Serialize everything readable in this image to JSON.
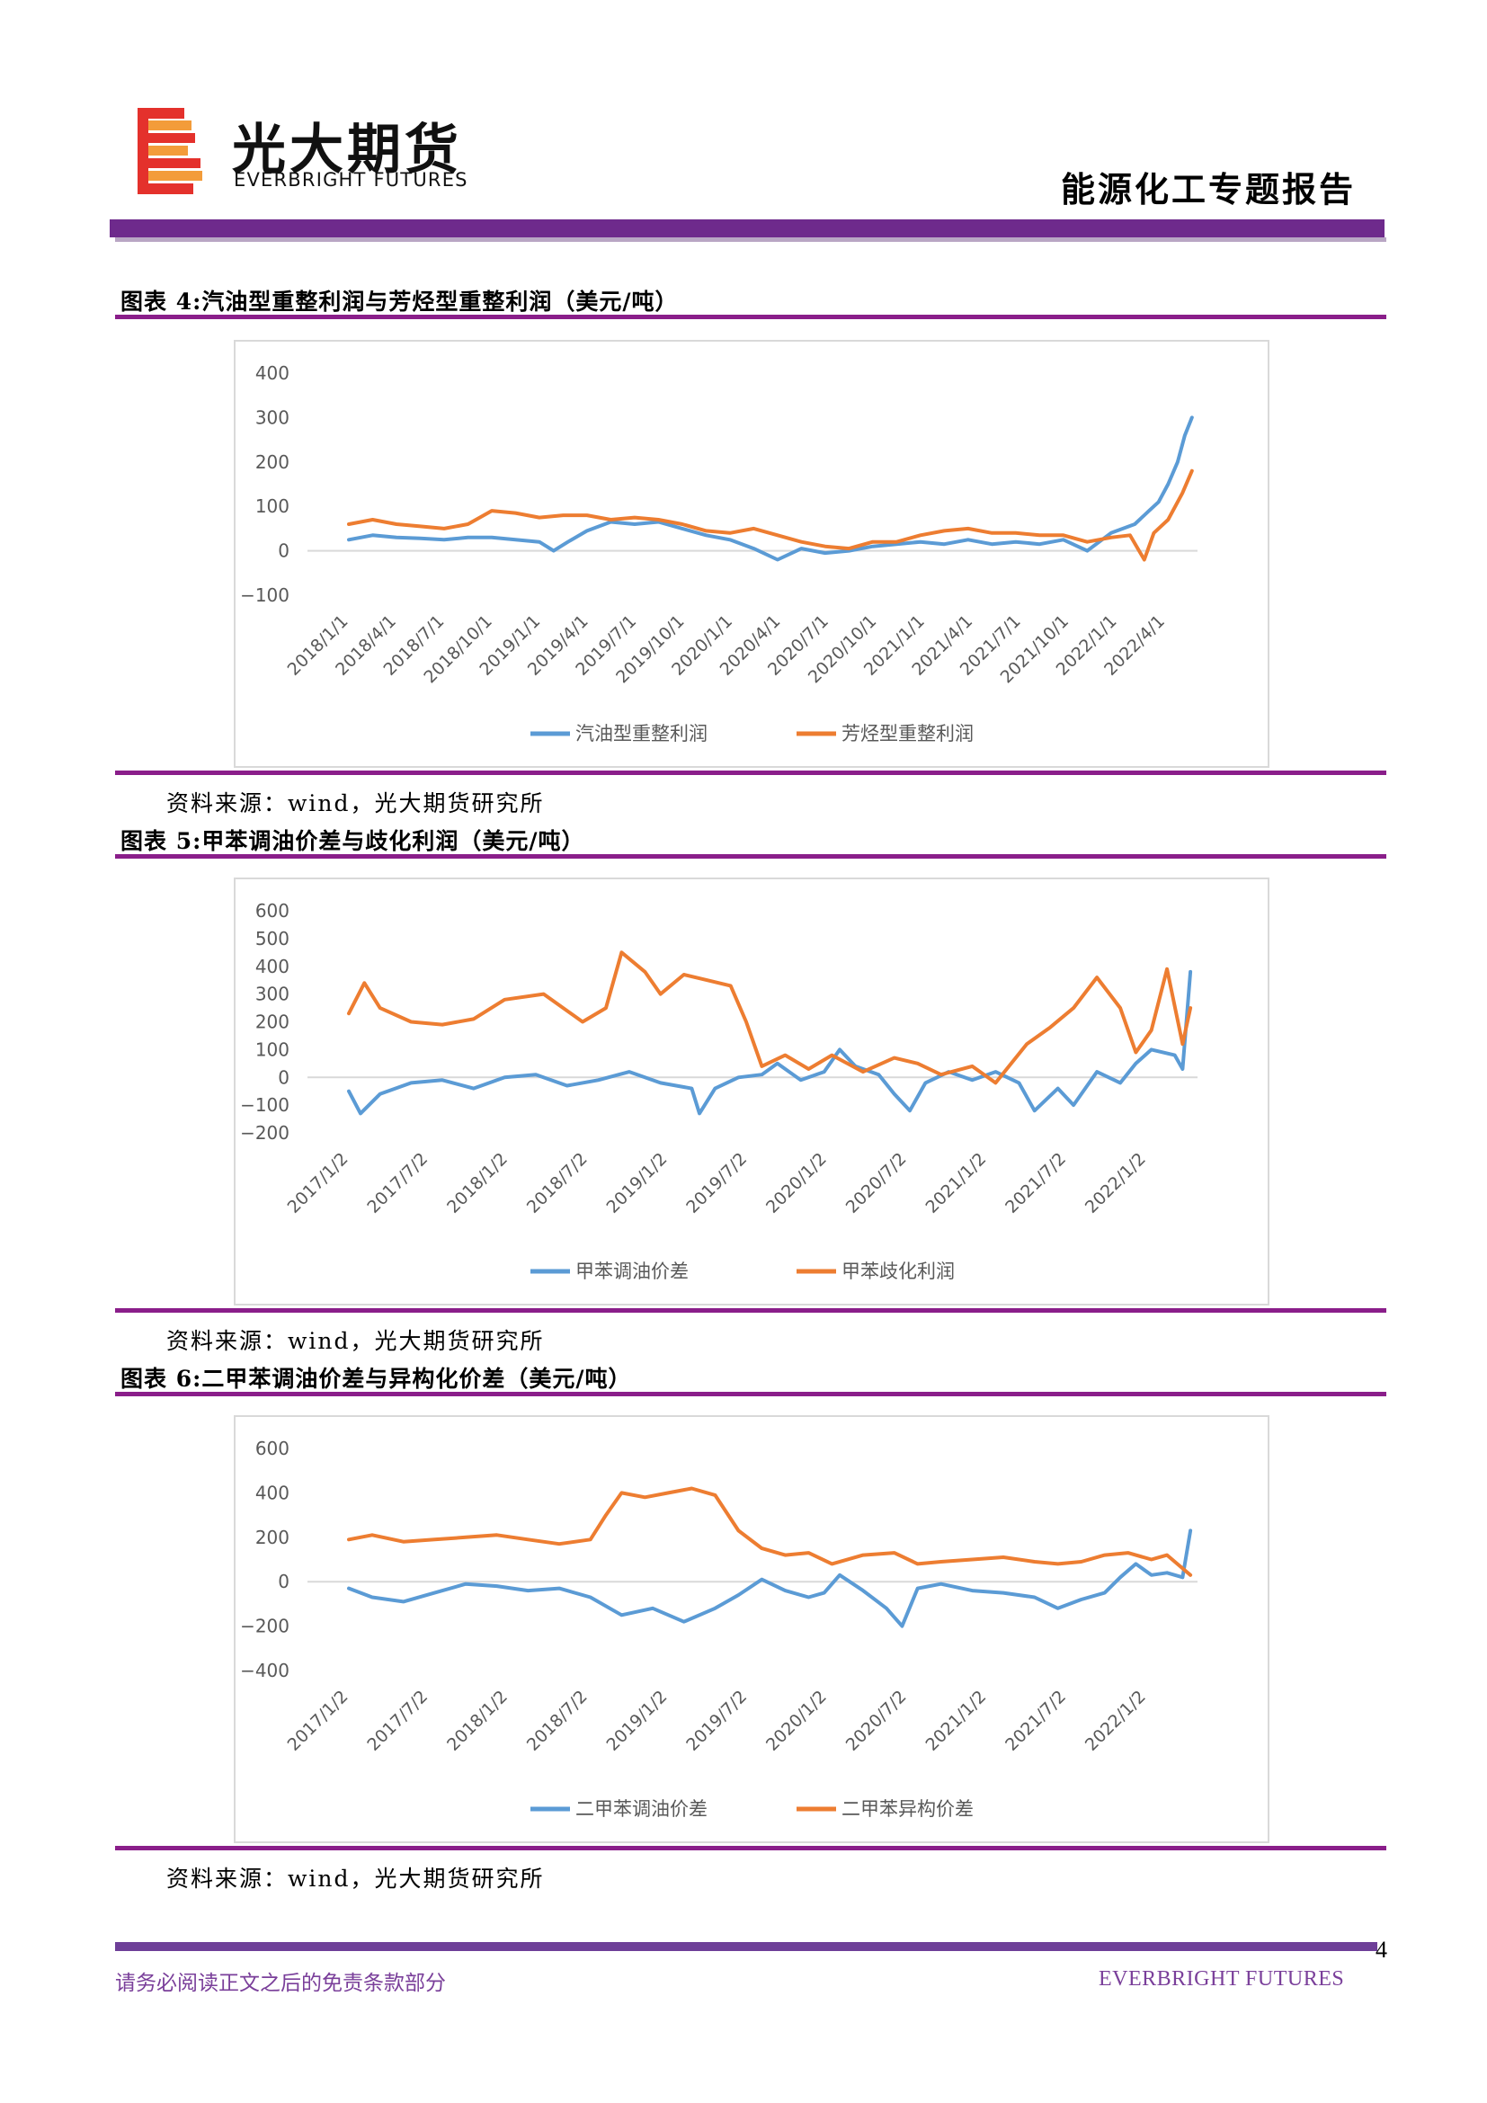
{
  "header": {
    "logo_cn": "光大期货",
    "logo_en": "EVERBRIGHT FUTURES",
    "report_type": "能源化工专题报告",
    "logo_colors": {
      "red": "#e4312c",
      "orange": "#f39c3a"
    }
  },
  "figures": [
    {
      "title": "图表 4:汽油型重整利润与芳烃型重整利润（美元/吨）",
      "source": "资料来源：wind，光大期货研究所"
    },
    {
      "title": "图表 5:甲苯调油价差与歧化利润（美元/吨）",
      "source": "资料来源：wind，光大期货研究所"
    },
    {
      "title": "图表 6:二甲苯调油价差与异构化价差（美元/吨）",
      "source": "资料来源：wind，光大期货研究所"
    }
  ],
  "colors": {
    "blue": "#5b9bd5",
    "orange": "#ed7d31",
    "purple": "#6e2a8c",
    "grid": "#d9d9d9",
    "axis": "#595959"
  },
  "chart_data": [
    {
      "type": "line",
      "title": "汽油型重整利润与芳烃型重整利润",
      "ylim": [
        -100,
        400
      ],
      "yticks": [
        400,
        300,
        200,
        100,
        0,
        -100
      ],
      "ytick_labels": [
        "400",
        "300",
        "200",
        "100",
        "0",
        "−100"
      ],
      "xticks": [
        "2018/1/1",
        "2018/4/1",
        "2018/7/1",
        "2018/10/1",
        "2019/1/1",
        "2019/4/1",
        "2019/7/1",
        "2019/10/1",
        "2020/1/1",
        "2020/4/1",
        "2020/7/1",
        "2020/10/1",
        "2021/1/1",
        "2021/4/1",
        "2021/7/1",
        "2021/10/1",
        "2022/1/1",
        "2022/4/1"
      ],
      "x_span": [
        0,
        17.7
      ],
      "legend": "bottom",
      "series": [
        {
          "name": "汽油型重整利润",
          "color": "#5b9bd5",
          "points": [
            [
              0,
              25
            ],
            [
              0.5,
              35
            ],
            [
              1,
              30
            ],
            [
              1.5,
              28
            ],
            [
              2,
              25
            ],
            [
              2.5,
              30
            ],
            [
              3,
              30
            ],
            [
              3.5,
              25
            ],
            [
              4,
              20
            ],
            [
              4.3,
              0
            ],
            [
              4.6,
              20
            ],
            [
              5,
              45
            ],
            [
              5.5,
              65
            ],
            [
              6,
              60
            ],
            [
              6.5,
              65
            ],
            [
              7,
              50
            ],
            [
              7.5,
              35
            ],
            [
              8,
              25
            ],
            [
              8.5,
              5
            ],
            [
              9,
              -20
            ],
            [
              9.5,
              5
            ],
            [
              10,
              -5
            ],
            [
              10.5,
              0
            ],
            [
              11,
              10
            ],
            [
              11.5,
              15
            ],
            [
              12,
              20
            ],
            [
              12.5,
              15
            ],
            [
              13,
              25
            ],
            [
              13.5,
              15
            ],
            [
              14,
              20
            ],
            [
              14.5,
              15
            ],
            [
              15,
              25
            ],
            [
              15.5,
              0
            ],
            [
              16,
              40
            ],
            [
              16.5,
              60
            ],
            [
              16.8,
              90
            ],
            [
              17,
              110
            ],
            [
              17.2,
              150
            ],
            [
              17.4,
              200
            ],
            [
              17.55,
              260
            ],
            [
              17.7,
              300
            ]
          ]
        },
        {
          "name": "芳烃型重整利润",
          "color": "#ed7d31",
          "points": [
            [
              0,
              60
            ],
            [
              0.5,
              70
            ],
            [
              1,
              60
            ],
            [
              1.5,
              55
            ],
            [
              2,
              50
            ],
            [
              2.5,
              60
            ],
            [
              3,
              90
            ],
            [
              3.5,
              85
            ],
            [
              4,
              75
            ],
            [
              4.5,
              80
            ],
            [
              5,
              80
            ],
            [
              5.5,
              70
            ],
            [
              6,
              75
            ],
            [
              6.5,
              70
            ],
            [
              7,
              60
            ],
            [
              7.5,
              45
            ],
            [
              8,
              40
            ],
            [
              8.5,
              50
            ],
            [
              9,
              35
            ],
            [
              9.5,
              20
            ],
            [
              10,
              10
            ],
            [
              10.5,
              5
            ],
            [
              11,
              20
            ],
            [
              11.5,
              20
            ],
            [
              12,
              35
            ],
            [
              12.5,
              45
            ],
            [
              13,
              50
            ],
            [
              13.5,
              40
            ],
            [
              14,
              40
            ],
            [
              14.5,
              35
            ],
            [
              15,
              35
            ],
            [
              15.5,
              20
            ],
            [
              16,
              30
            ],
            [
              16.4,
              35
            ],
            [
              16.7,
              -20
            ],
            [
              16.9,
              40
            ],
            [
              17.2,
              70
            ],
            [
              17.5,
              130
            ],
            [
              17.7,
              180
            ]
          ]
        }
      ]
    },
    {
      "type": "line",
      "title": "甲苯调油价差与歧化利润",
      "ylim": [
        -200,
        600
      ],
      "yticks": [
        600,
        500,
        400,
        300,
        200,
        100,
        0,
        -100,
        -200
      ],
      "ytick_labels": [
        "600",
        "500",
        "400",
        "300",
        "200",
        "100",
        "0",
        "−100",
        "−200"
      ],
      "xticks": [
        "2017/1/2",
        "2017/7/2",
        "2018/1/2",
        "2018/7/2",
        "2019/1/2",
        "2019/7/2",
        "2020/1/2",
        "2020/7/2",
        "2021/1/2",
        "2021/7/2",
        "2022/1/2"
      ],
      "x_span": [
        0,
        10.8
      ],
      "legend": "bottom",
      "series": [
        {
          "name": "甲苯调油价差",
          "color": "#5b9bd5",
          "points": [
            [
              0,
              -50
            ],
            [
              0.15,
              -130
            ],
            [
              0.4,
              -60
            ],
            [
              0.8,
              -20
            ],
            [
              1.2,
              -10
            ],
            [
              1.6,
              -40
            ],
            [
              2,
              0
            ],
            [
              2.4,
              10
            ],
            [
              2.8,
              -30
            ],
            [
              3.2,
              -10
            ],
            [
              3.6,
              20
            ],
            [
              4,
              -20
            ],
            [
              4.4,
              -40
            ],
            [
              4.5,
              -130
            ],
            [
              4.7,
              -40
            ],
            [
              5,
              0
            ],
            [
              5.3,
              10
            ],
            [
              5.5,
              50
            ],
            [
              5.8,
              -10
            ],
            [
              6.1,
              20
            ],
            [
              6.3,
              100
            ],
            [
              6.5,
              40
            ],
            [
              6.8,
              10
            ],
            [
              7,
              -60
            ],
            [
              7.2,
              -120
            ],
            [
              7.4,
              -20
            ],
            [
              7.7,
              20
            ],
            [
              8,
              -10
            ],
            [
              8.3,
              20
            ],
            [
              8.6,
              -20
            ],
            [
              8.8,
              -120
            ],
            [
              9.1,
              -40
            ],
            [
              9.3,
              -100
            ],
            [
              9.6,
              20
            ],
            [
              9.9,
              -20
            ],
            [
              10.1,
              50
            ],
            [
              10.3,
              100
            ],
            [
              10.6,
              80
            ],
            [
              10.7,
              30
            ],
            [
              10.8,
              380
            ]
          ]
        },
        {
          "name": "甲苯歧化利润",
          "color": "#ed7d31",
          "points": [
            [
              0,
              230
            ],
            [
              0.2,
              340
            ],
            [
              0.4,
              250
            ],
            [
              0.8,
              200
            ],
            [
              1.2,
              190
            ],
            [
              1.6,
              210
            ],
            [
              2,
              280
            ],
            [
              2.5,
              300
            ],
            [
              3,
              200
            ],
            [
              3.3,
              250
            ],
            [
              3.5,
              450
            ],
            [
              3.8,
              380
            ],
            [
              4,
              300
            ],
            [
              4.3,
              370
            ],
            [
              4.6,
              350
            ],
            [
              4.9,
              330
            ],
            [
              5.1,
              200
            ],
            [
              5.3,
              40
            ],
            [
              5.6,
              80
            ],
            [
              5.9,
              30
            ],
            [
              6.2,
              80
            ],
            [
              6.6,
              20
            ],
            [
              7,
              70
            ],
            [
              7.3,
              50
            ],
            [
              7.6,
              10
            ],
            [
              8,
              40
            ],
            [
              8.3,
              -20
            ],
            [
              8.7,
              120
            ],
            [
              9,
              180
            ],
            [
              9.3,
              250
            ],
            [
              9.6,
              360
            ],
            [
              9.9,
              250
            ],
            [
              10.1,
              90
            ],
            [
              10.3,
              170
            ],
            [
              10.5,
              390
            ],
            [
              10.7,
              120
            ],
            [
              10.8,
              250
            ]
          ]
        }
      ]
    },
    {
      "type": "line",
      "title": "二甲苯调油价差与异构化价差",
      "ylim": [
        -400,
        600
      ],
      "yticks": [
        600,
        400,
        200,
        0,
        -200,
        -400
      ],
      "ytick_labels": [
        "600",
        "400",
        "200",
        "0",
        "−200",
        "−400"
      ],
      "xticks": [
        "2017/1/2",
        "2017/7/2",
        "2018/1/2",
        "2018/7/2",
        "2019/1/2",
        "2019/7/2",
        "2020/1/2",
        "2020/7/2",
        "2021/1/2",
        "2021/7/2",
        "2022/1/2"
      ],
      "x_span": [
        0,
        10.8
      ],
      "legend": "bottom",
      "series": [
        {
          "name": "二甲苯调油价差",
          "color": "#5b9bd5",
          "points": [
            [
              0,
              -30
            ],
            [
              0.3,
              -70
            ],
            [
              0.7,
              -90
            ],
            [
              1.1,
              -50
            ],
            [
              1.5,
              -10
            ],
            [
              1.9,
              -20
            ],
            [
              2.3,
              -40
            ],
            [
              2.7,
              -30
            ],
            [
              3.1,
              -70
            ],
            [
              3.5,
              -150
            ],
            [
              3.9,
              -120
            ],
            [
              4.3,
              -180
            ],
            [
              4.7,
              -120
            ],
            [
              5,
              -60
            ],
            [
              5.3,
              10
            ],
            [
              5.6,
              -40
            ],
            [
              5.9,
              -70
            ],
            [
              6.1,
              -50
            ],
            [
              6.3,
              30
            ],
            [
              6.6,
              -40
            ],
            [
              6.9,
              -120
            ],
            [
              7.1,
              -200
            ],
            [
              7.3,
              -30
            ],
            [
              7.6,
              -10
            ],
            [
              8,
              -40
            ],
            [
              8.4,
              -50
            ],
            [
              8.8,
              -70
            ],
            [
              9.1,
              -120
            ],
            [
              9.4,
              -80
            ],
            [
              9.7,
              -50
            ],
            [
              9.9,
              20
            ],
            [
              10.1,
              80
            ],
            [
              10.3,
              30
            ],
            [
              10.5,
              40
            ],
            [
              10.7,
              20
            ],
            [
              10.8,
              230
            ]
          ]
        },
        {
          "name": "二甲苯异构价差",
          "color": "#ed7d31",
          "points": [
            [
              0,
              190
            ],
            [
              0.3,
              210
            ],
            [
              0.7,
              180
            ],
            [
              1.1,
              190
            ],
            [
              1.5,
              200
            ],
            [
              1.9,
              210
            ],
            [
              2.3,
              190
            ],
            [
              2.7,
              170
            ],
            [
              3.1,
              190
            ],
            [
              3.3,
              300
            ],
            [
              3.5,
              400
            ],
            [
              3.8,
              380
            ],
            [
              4.1,
              400
            ],
            [
              4.4,
              420
            ],
            [
              4.7,
              390
            ],
            [
              5,
              230
            ],
            [
              5.3,
              150
            ],
            [
              5.6,
              120
            ],
            [
              5.9,
              130
            ],
            [
              6.2,
              80
            ],
            [
              6.6,
              120
            ],
            [
              7,
              130
            ],
            [
              7.3,
              80
            ],
            [
              7.6,
              90
            ],
            [
              8,
              100
            ],
            [
              8.4,
              110
            ],
            [
              8.8,
              90
            ],
            [
              9.1,
              80
            ],
            [
              9.4,
              90
            ],
            [
              9.7,
              120
            ],
            [
              10,
              130
            ],
            [
              10.3,
              100
            ],
            [
              10.5,
              120
            ],
            [
              10.7,
              60
            ],
            [
              10.8,
              30
            ]
          ]
        }
      ]
    }
  ],
  "footer": {
    "disclaimer": "请务必阅读正文之后的免责条款部分",
    "brand": "EVERBRIGHT FUTURES",
    "page_number": "4"
  }
}
